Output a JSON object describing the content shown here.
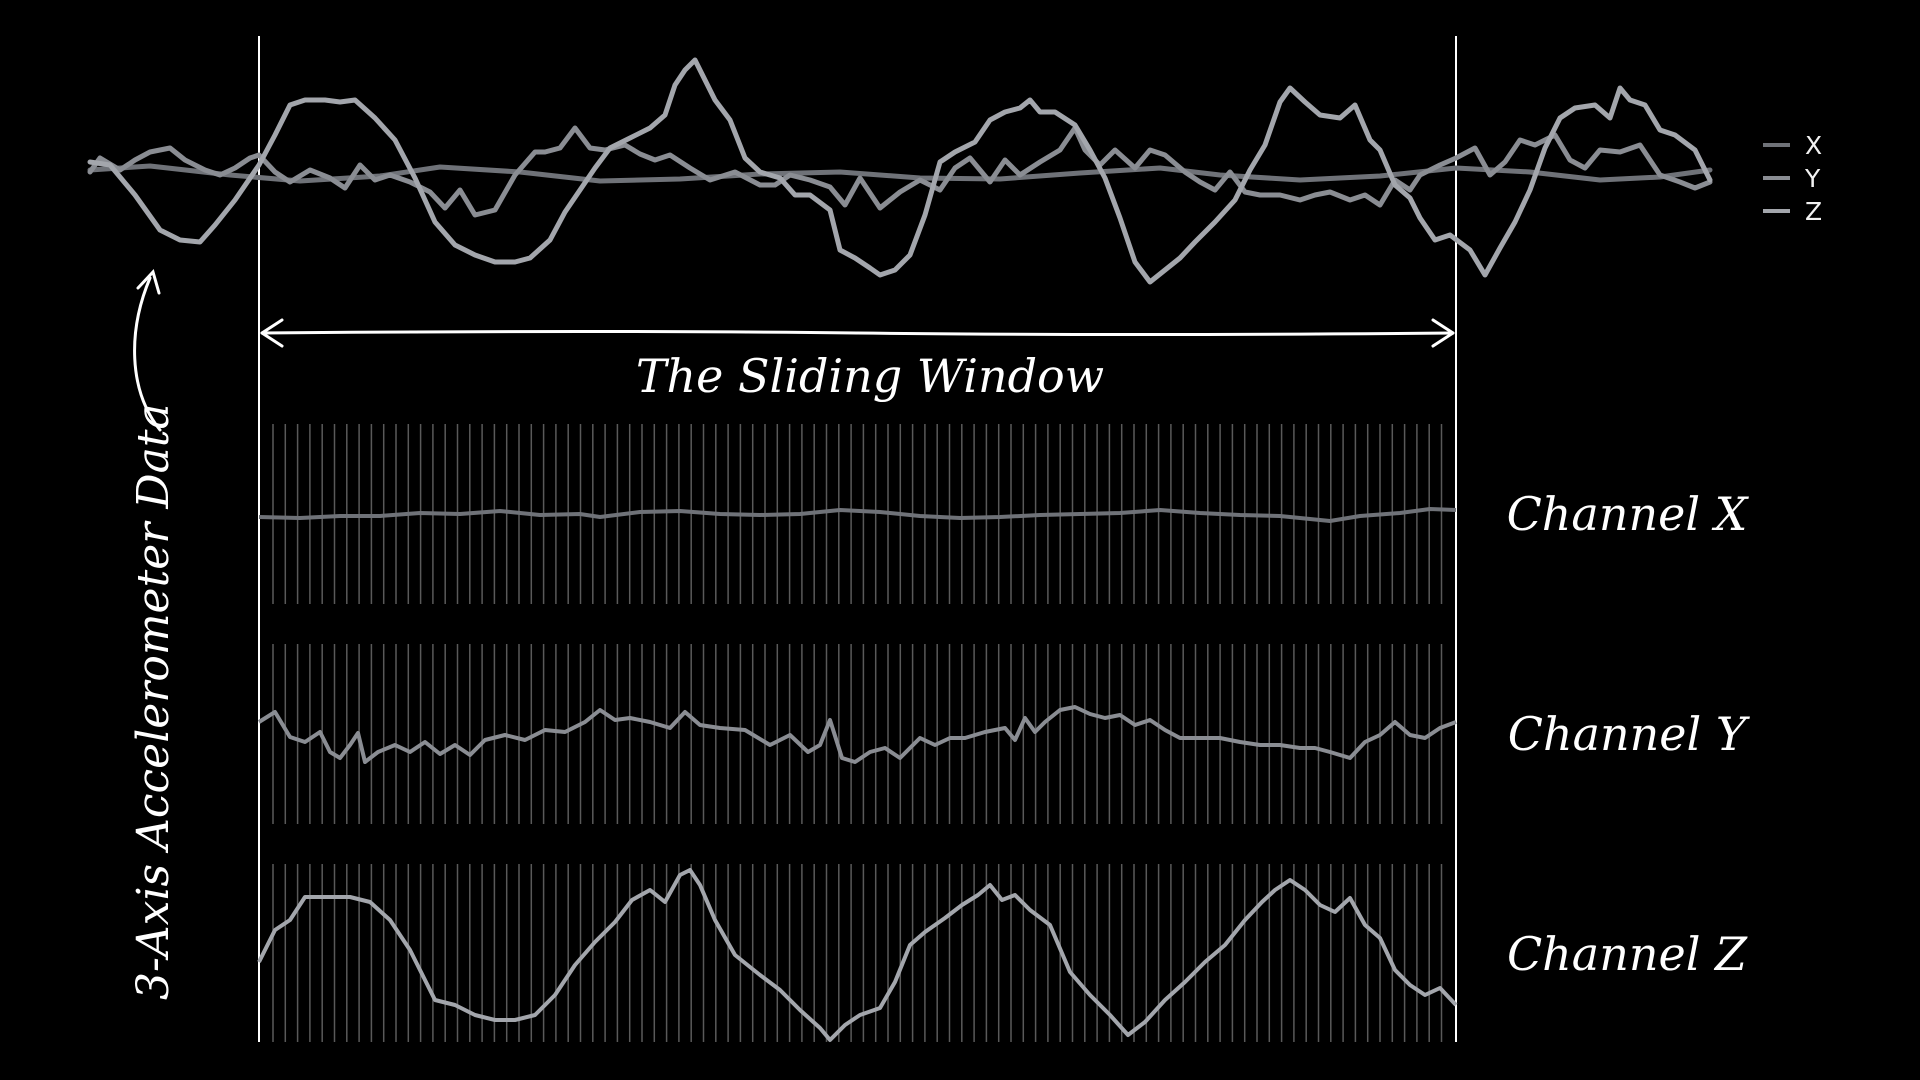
{
  "diagram": {
    "vertical_label": "3-Axis Accelerometer Data",
    "window_label": "The Sliding Window",
    "legend": [
      {
        "label": "X",
        "color": "#6f7278"
      },
      {
        "label": "Y",
        "color": "#8a8d93"
      },
      {
        "label": "Z",
        "color": "#a3a6ac"
      }
    ],
    "channels": [
      {
        "label": "Channel X",
        "color": "#6f7278"
      },
      {
        "label": "Channel Y",
        "color": "#8a8d93"
      },
      {
        "label": "Channel Z",
        "color": "#a3a6ac"
      }
    ],
    "colors": {
      "background": "#000000",
      "foreground": "#ffffff",
      "sample_lines": "#5a5a5a"
    }
  }
}
